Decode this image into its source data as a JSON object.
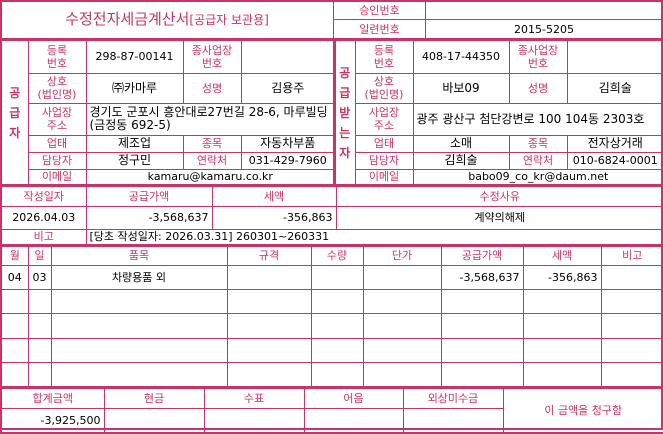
{
  "header": {
    "title": "수정전자세금계산서",
    "subtitle": "[공급자 보관용]",
    "approval_label": "승인번호",
    "approval_value": "",
    "serial_label": "일련번호",
    "serial_value": "2015-5205"
  },
  "labels": {
    "reg_no": "등록\n번호",
    "sub_biz": "종사업장\n번호",
    "company": "상호\n(법인명)",
    "name": "성명",
    "address": "사업장\n주소",
    "biz_type": "업태",
    "item": "종목",
    "manager": "담당자",
    "contact": "연락처",
    "email": "이메일"
  },
  "supplier": {
    "section_label": "공급자",
    "reg_no": "298-87-00141",
    "sub_biz": "",
    "company": "㈜카마루",
    "name": "김용주",
    "address": "경기도 군포시 흥안대로27번길 28-6, 마루빌딩 (금정동 692-5)",
    "biz_type": "제조업",
    "item": "자동차부품",
    "manager": "정구민",
    "contact": "031-429-7960",
    "email": "kamaru@kamaru.co.kr"
  },
  "receiver": {
    "section_label": "공급받는자",
    "reg_no": "408-17-44350",
    "sub_biz": "",
    "company": "바보09",
    "name": "김희술",
    "address": "광주 광산구 첨단강변로 100 104동 2303호",
    "biz_type": "소매",
    "item": "전자상거래",
    "manager": "김희술",
    "contact": "010-6824-0001",
    "email": "babo09_co_kr@daum.net"
  },
  "summary": {
    "date_label": "작성일자",
    "supply_label": "공급가액",
    "tax_label": "세액",
    "reason_label": "수정사유",
    "date": "2026.04.03",
    "supply": "-3,568,637",
    "tax": "-356,863",
    "reason": "계약의해제",
    "note_label": "비고",
    "note": "[당초 작성일자: 2026.03.31] 260301~260331"
  },
  "items": {
    "headers": [
      "월",
      "일",
      "품목",
      "규격",
      "수량",
      "단가",
      "공급가액",
      "세액",
      "비고"
    ],
    "rows": [
      [
        "04",
        "03",
        "차량용품 외",
        "",
        "",
        "",
        "-3,568,637",
        "-356,863",
        ""
      ]
    ]
  },
  "totals": {
    "headers": [
      "합계금액",
      "현금",
      "수표",
      "어음",
      "외상미수금"
    ],
    "values": [
      "-3,925,500",
      "",
      "",
      "",
      ""
    ],
    "claim_text": "이 금액을 청구함"
  },
  "colors": {
    "accent": "#c8336a"
  }
}
